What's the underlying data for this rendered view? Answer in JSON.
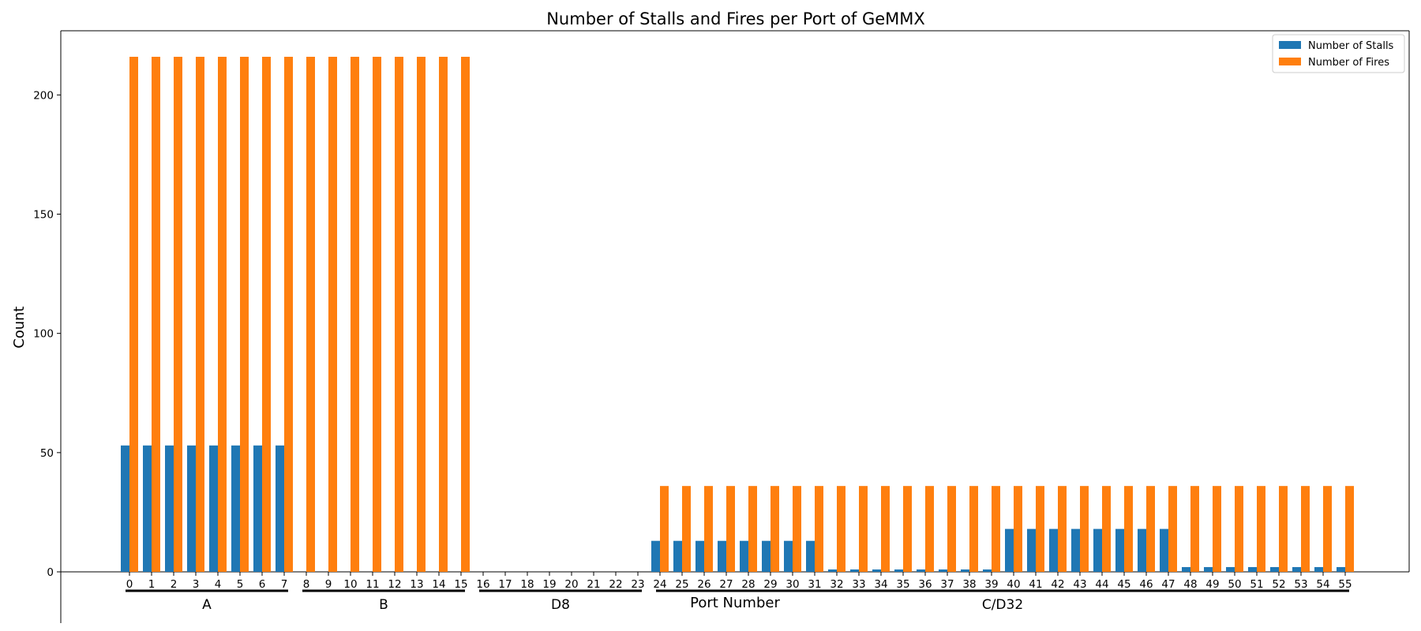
{
  "chart_data": {
    "type": "bar",
    "title": "Number of Stalls and Fires per Port of GeMMX",
    "xlabel": "Port Number",
    "ylabel": "Count",
    "ylim": [
      0,
      227
    ],
    "yticks": [
      0,
      50,
      100,
      150,
      200
    ],
    "legend_position": "top-right",
    "categories": [
      "0",
      "1",
      "2",
      "3",
      "4",
      "5",
      "6",
      "7",
      "8",
      "9",
      "10",
      "11",
      "12",
      "13",
      "14",
      "15",
      "16",
      "17",
      "18",
      "19",
      "20",
      "21",
      "22",
      "23",
      "24",
      "25",
      "26",
      "27",
      "28",
      "29",
      "30",
      "31",
      "32",
      "33",
      "34",
      "35",
      "36",
      "37",
      "38",
      "39",
      "40",
      "41",
      "42",
      "43",
      "44",
      "45",
      "46",
      "47",
      "48",
      "49",
      "50",
      "51",
      "52",
      "53",
      "54",
      "55"
    ],
    "series": [
      {
        "name": "Number of Stalls",
        "color": "#1f77b4",
        "values": [
          53,
          53,
          53,
          53,
          53,
          53,
          53,
          53,
          0,
          0,
          0,
          0,
          0,
          0,
          0,
          0,
          0,
          0,
          0,
          0,
          0,
          0,
          0,
          0,
          13,
          13,
          13,
          13,
          13,
          13,
          13,
          13,
          1,
          1,
          1,
          1,
          1,
          1,
          1,
          1,
          18,
          18,
          18,
          18,
          18,
          18,
          18,
          18,
          2,
          2,
          2,
          2,
          2,
          2,
          2,
          2
        ]
      },
      {
        "name": "Number of Fires",
        "color": "#ff7f0e",
        "values": [
          216,
          216,
          216,
          216,
          216,
          216,
          216,
          216,
          216,
          216,
          216,
          216,
          216,
          216,
          216,
          216,
          0,
          0,
          0,
          0,
          0,
          0,
          0,
          0,
          36,
          36,
          36,
          36,
          36,
          36,
          36,
          36,
          36,
          36,
          36,
          36,
          36,
          36,
          36,
          36,
          36,
          36,
          36,
          36,
          36,
          36,
          36,
          36,
          36,
          36,
          36,
          36,
          36,
          36,
          36,
          36
        ]
      }
    ],
    "port_groups": [
      {
        "label": "A",
        "from": 0,
        "to": 7
      },
      {
        "label": "B",
        "from": 8,
        "to": 15
      },
      {
        "label": "D8",
        "from": 16,
        "to": 23
      },
      {
        "label": "C/D32",
        "from": 24,
        "to": 55
      }
    ]
  }
}
